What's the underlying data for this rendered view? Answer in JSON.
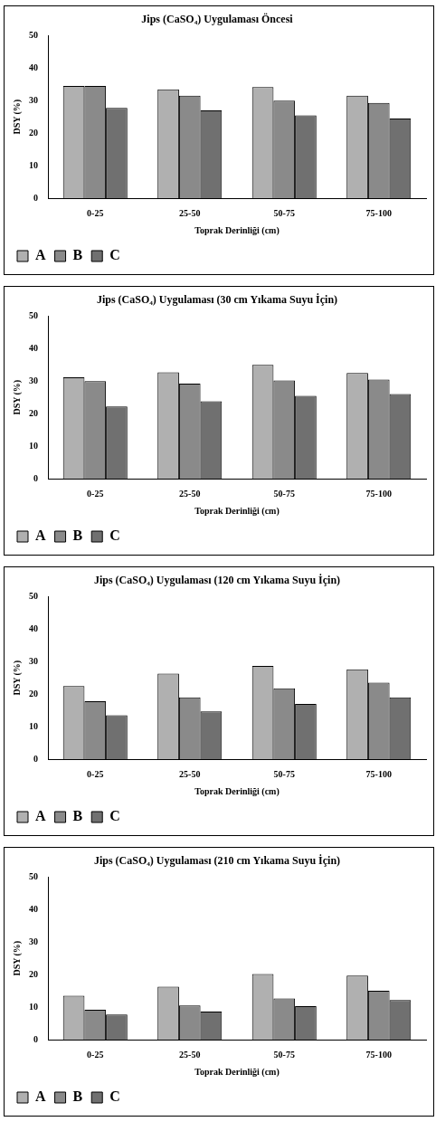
{
  "chart_data": [
    {
      "type": "bar",
      "title": "Jips (CaSO₄) Uygulaması Öncesi",
      "xlabel": "Toprak Derinliği (cm)",
      "ylabel": "DSY (%)",
      "categories": [
        "0-25",
        "25-50",
        "50-75",
        "75-100"
      ],
      "series": [
        {
          "name": "A",
          "color": "#b0b0b0",
          "values": [
            34.5,
            33.5,
            34.2,
            31.5
          ]
        },
        {
          "name": "B",
          "color": "#8a8a8a",
          "values": [
            34.5,
            31.5,
            30,
            29.3
          ]
        },
        {
          "name": "C",
          "color": "#707070",
          "values": [
            27.8,
            27,
            25.5,
            24.5
          ]
        }
      ],
      "ylim": [
        0,
        50
      ],
      "yticks": [
        0,
        10,
        20,
        30,
        40,
        50
      ],
      "grid": false,
      "legend": "bottom left"
    },
    {
      "type": "bar",
      "title": "Jips (CaSO₄) Uygulaması (30 cm Yıkama Suyu İçin)",
      "xlabel": "Toprak Derinliği (cm)",
      "ylabel": "DSY (%)",
      "categories": [
        "0-25",
        "25-50",
        "50-75",
        "75-100"
      ],
      "series": [
        {
          "name": "A",
          "color": "#b0b0b0",
          "values": [
            31.2,
            32.7,
            35,
            32.5
          ]
        },
        {
          "name": "B",
          "color": "#8a8a8a",
          "values": [
            30,
            29.2,
            30.2,
            30.5
          ]
        },
        {
          "name": "C",
          "color": "#707070",
          "values": [
            22.2,
            23.8,
            25.5,
            26
          ]
        }
      ],
      "ylim": [
        0,
        50
      ],
      "yticks": [
        0,
        10,
        20,
        30,
        40,
        50
      ],
      "grid": false,
      "legend": "bottom left"
    },
    {
      "type": "bar",
      "title": "Jips (CaSO₄) Uygulaması (120 cm Yıkama Suyu İçin)",
      "xlabel": "Toprak Derinliği (cm)",
      "ylabel": "DSY (%)",
      "categories": [
        "0-25",
        "25-50",
        "50-75",
        "75-100"
      ],
      "series": [
        {
          "name": "A",
          "color": "#b0b0b0",
          "values": [
            22.5,
            26.3,
            28.7,
            27.6
          ]
        },
        {
          "name": "B",
          "color": "#8a8a8a",
          "values": [
            17.8,
            19,
            21.8,
            23.5
          ]
        },
        {
          "name": "C",
          "color": "#707070",
          "values": [
            13.5,
            14.7,
            17,
            19
          ]
        }
      ],
      "ylim": [
        0,
        50
      ],
      "yticks": [
        0,
        10,
        20,
        30,
        40,
        50
      ],
      "grid": false,
      "legend": "bottom left"
    },
    {
      "type": "bar",
      "title": "Jips (CaSO₄) Uygulaması (210 cm Yıkama Suyu İçin)",
      "xlabel": "Toprak Derinliği (cm)",
      "ylabel": "DSY (%)",
      "categories": [
        "0-25",
        "25-50",
        "50-75",
        "75-100"
      ],
      "series": [
        {
          "name": "A",
          "color": "#b0b0b0",
          "values": [
            13.5,
            16.3,
            20.2,
            19.7
          ]
        },
        {
          "name": "B",
          "color": "#8a8a8a",
          "values": [
            9.2,
            10.5,
            12.7,
            15
          ]
        },
        {
          "name": "C",
          "color": "#707070",
          "values": [
            7.7,
            8.6,
            10.3,
            12.2
          ]
        }
      ],
      "ylim": [
        0,
        50
      ],
      "yticks": [
        0,
        10,
        20,
        30,
        40,
        50
      ],
      "grid": false,
      "legend": "bottom left"
    }
  ]
}
